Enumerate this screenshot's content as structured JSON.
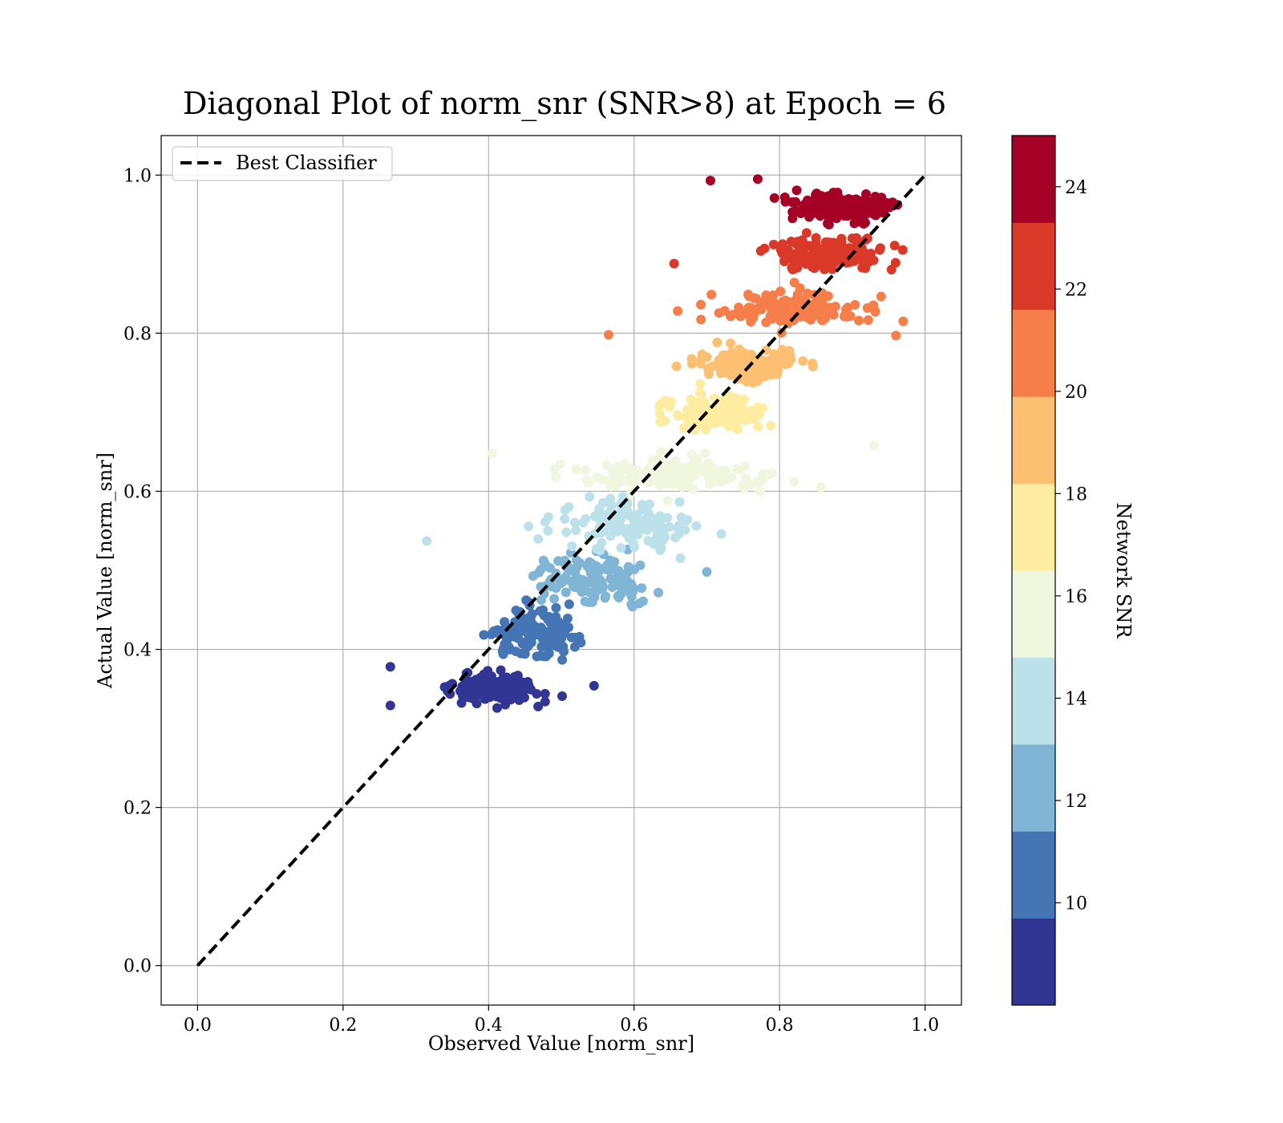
{
  "chart_data": {
    "type": "scatter",
    "title": "Diagonal Plot of norm_snr (SNR>8) at Epoch = 6",
    "xlabel": "Observed Value [norm_snr]",
    "ylabel": "Actual Value [norm_snr]",
    "xlim": [
      -0.05,
      1.05
    ],
    "ylim": [
      -0.05,
      1.05
    ],
    "xticks": [
      "0.0",
      "0.2",
      "0.4",
      "0.6",
      "0.8",
      "1.0"
    ],
    "yticks": [
      "0.0",
      "0.2",
      "0.4",
      "0.6",
      "0.8",
      "1.0"
    ],
    "grid": true,
    "legend": {
      "placement": "upper-left",
      "entries": [
        {
          "label": "Best Classifier",
          "style": "dashed",
          "color": "#000000"
        }
      ]
    },
    "reference_line": {
      "label": "Best Classifier",
      "x": [
        0.0,
        1.0
      ],
      "y": [
        0.0,
        1.0
      ],
      "style": "dashed",
      "color": "#000000"
    },
    "colorbar": {
      "label": "Network SNR",
      "range": [
        8,
        25
      ],
      "ticks": [
        "10",
        "12",
        "14",
        "16",
        "18",
        "20",
        "22",
        "24"
      ],
      "colors": [
        "#313695",
        "#4575b4",
        "#74add1",
        "#abd9e9",
        "#e0f3f8",
        "#ffffbf",
        "#fee090",
        "#fdae61",
        "#f46d43",
        "#d73027",
        "#a50026"
      ],
      "bands": [
        {
          "from": 8.0,
          "to": 9.7,
          "color": "#313695"
        },
        {
          "from": 9.7,
          "to": 11.4,
          "color": "#4575b4"
        },
        {
          "from": 11.4,
          "to": 13.1,
          "color": "#81b5d6"
        },
        {
          "from": 13.1,
          "to": 14.8,
          "color": "#bde1ea"
        },
        {
          "from": 14.8,
          "to": 16.5,
          "color": "#eff7df"
        },
        {
          "from": 16.5,
          "to": 18.2,
          "color": "#feeca1"
        },
        {
          "from": 18.2,
          "to": 19.9,
          "color": "#fdbf71"
        },
        {
          "from": 19.9,
          "to": 21.6,
          "color": "#f67e4b"
        },
        {
          "from": 21.6,
          "to": 23.3,
          "color": "#da3829"
        },
        {
          "from": 23.3,
          "to": 25.0,
          "color": "#a50026"
        }
      ]
    },
    "series": [
      {
        "snr_band": [
          8.0,
          9.7
        ],
        "color": "#313695",
        "x_center": 0.41,
        "y_center": 0.35,
        "x_spread": [
          0.27,
          0.55
        ],
        "y_spread": [
          0.32,
          0.4
        ],
        "count": 120
      },
      {
        "snr_band": [
          9.7,
          11.4
        ],
        "color": "#4575b4",
        "x_center": 0.46,
        "y_center": 0.42,
        "x_spread": [
          0.33,
          0.6
        ],
        "y_spread": [
          0.37,
          0.5
        ],
        "count": 150
      },
      {
        "snr_band": [
          11.4,
          13.1
        ],
        "color": "#81b5d6",
        "x_center": 0.54,
        "y_center": 0.49,
        "x_spread": [
          0.39,
          0.7
        ],
        "y_spread": [
          0.43,
          0.55
        ],
        "count": 150
      },
      {
        "snr_band": [
          13.1,
          14.8
        ],
        "color": "#bde1ea",
        "x_center": 0.59,
        "y_center": 0.56,
        "x_spread": [
          0.31,
          0.73
        ],
        "y_spread": [
          0.5,
          0.62
        ],
        "count": 130
      },
      {
        "snr_band": [
          14.8,
          16.5
        ],
        "color": "#eff7df",
        "x_center": 0.66,
        "y_center": 0.62,
        "x_spread": [
          0.4,
          0.93
        ],
        "y_spread": [
          0.58,
          0.67
        ],
        "count": 160
      },
      {
        "snr_band": [
          16.5,
          18.2
        ],
        "color": "#feeca1",
        "x_center": 0.71,
        "y_center": 0.7,
        "x_spread": [
          0.6,
          0.88
        ],
        "y_spread": [
          0.64,
          0.74
        ],
        "count": 140
      },
      {
        "snr_band": [
          18.2,
          19.9
        ],
        "color": "#fdbf71",
        "x_center": 0.76,
        "y_center": 0.76,
        "x_spread": [
          0.61,
          0.94
        ],
        "y_spread": [
          0.71,
          0.8
        ],
        "count": 130
      },
      {
        "snr_band": [
          19.9,
          21.6
        ],
        "color": "#f67e4b",
        "x_center": 0.82,
        "y_center": 0.83,
        "x_spread": [
          0.56,
          0.97
        ],
        "y_spread": [
          0.78,
          0.87
        ],
        "count": 140
      },
      {
        "snr_band": [
          21.6,
          23.3
        ],
        "color": "#da3829",
        "x_center": 0.87,
        "y_center": 0.9,
        "x_spread": [
          0.65,
          0.98
        ],
        "y_spread": [
          0.86,
          0.94
        ],
        "count": 170
      },
      {
        "snr_band": [
          23.3,
          25.0
        ],
        "color": "#a50026",
        "x_center": 0.89,
        "y_center": 0.96,
        "x_spread": [
          0.7,
          0.99
        ],
        "y_spread": [
          0.93,
          1.0
        ],
        "count": 230
      }
    ],
    "outliers": [
      {
        "x": 0.565,
        "y": 0.798,
        "color": "#f67e4b"
      },
      {
        "x": 0.96,
        "y": 0.797,
        "color": "#f67e4b"
      },
      {
        "x": 0.97,
        "y": 0.815,
        "color": "#f67e4b"
      },
      {
        "x": 0.315,
        "y": 0.537,
        "color": "#bde1ea"
      },
      {
        "x": 0.405,
        "y": 0.648,
        "color": "#eff7df"
      },
      {
        "x": 0.93,
        "y": 0.658,
        "color": "#eff7df"
      },
      {
        "x": 0.66,
        "y": 0.828,
        "color": "#f67e4b"
      },
      {
        "x": 0.655,
        "y": 0.888,
        "color": "#da3829"
      },
      {
        "x": 0.705,
        "y": 0.993,
        "color": "#a50026"
      },
      {
        "x": 0.77,
        "y": 0.995,
        "color": "#a50026"
      },
      {
        "x": 0.265,
        "y": 0.329,
        "color": "#313695"
      },
      {
        "x": 0.265,
        "y": 0.378,
        "color": "#313695"
      },
      {
        "x": 0.545,
        "y": 0.354,
        "color": "#313695"
      },
      {
        "x": 0.82,
        "y": 0.612,
        "color": "#eff7df"
      },
      {
        "x": 0.72,
        "y": 0.546,
        "color": "#bde1ea"
      },
      {
        "x": 0.7,
        "y": 0.498,
        "color": "#81b5d6"
      }
    ]
  }
}
